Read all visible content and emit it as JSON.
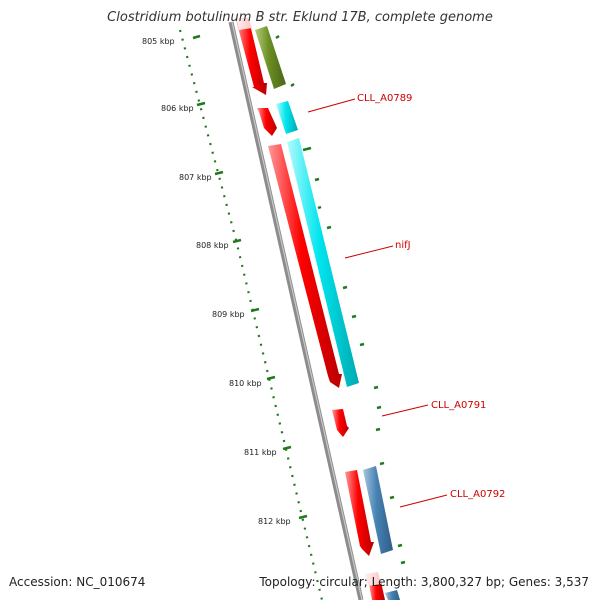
{
  "title": "Clostridium botulinum B str. Eklund 17B, complete genome",
  "footer": {
    "accession": "Accession: NC_010674",
    "stats": "Topology: circular; Length: 3,800,327 bp; Genes: 3,537"
  },
  "ticks": [
    "805 kbp",
    "806 kbp",
    "807 kbp",
    "808 kbp",
    "809 kbp",
    "810 kbp",
    "811 kbp",
    "812 kbp"
  ],
  "gene_labels": [
    "CLL_A0789",
    "nifJ",
    "CLL_A0791",
    "CLL_A0792"
  ],
  "colors": {
    "backbone": "#8c8c8c",
    "ruler": "#1f7a1f",
    "gene_red": "#ff0000",
    "gene_green": "#6b8e23",
    "gene_cyan": "#00e5ee",
    "gene_steelblue": "#4682b4",
    "label_red": "#cc0000"
  }
}
